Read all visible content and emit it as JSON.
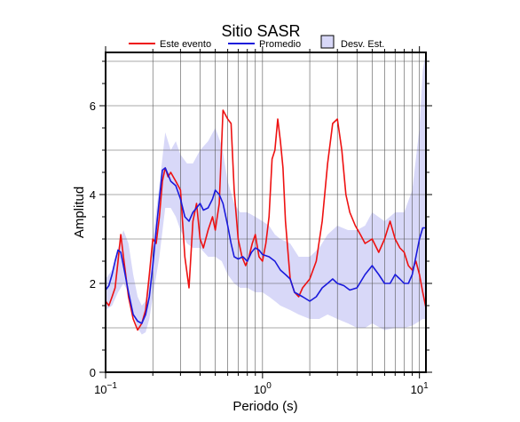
{
  "chart_data": {
    "type": "line",
    "title": "Sitio SASR",
    "xlabel": "Periodo (s)",
    "ylabel": "Amplitud",
    "x_scale": "log",
    "xlim": [
      0.1,
      11
    ],
    "ylim": [
      0,
      7.2
    ],
    "x_ticks": [
      {
        "value": 0.1,
        "base": "10",
        "exp": "−1"
      },
      {
        "value": 1,
        "base": "10",
        "exp": "0"
      },
      {
        "value": 10,
        "base": "10",
        "exp": "1"
      }
    ],
    "y_ticks": [
      0,
      2,
      4,
      6
    ],
    "grid": true,
    "legend": {
      "placement": "top",
      "entries": [
        {
          "label": "Este evento",
          "kind": "line",
          "color": "#ee1111"
        },
        {
          "label": "Promedio",
          "kind": "line",
          "color": "#1a1adc"
        },
        {
          "label": "Desv. Est.",
          "kind": "band",
          "color": "#d8d8f8"
        }
      ]
    },
    "series": [
      {
        "name": "Este evento",
        "color": "#ee1111",
        "x": [
          0.1,
          0.105,
          0.11,
          0.115,
          0.12,
          0.125,
          0.13,
          0.14,
          0.15,
          0.16,
          0.17,
          0.18,
          0.19,
          0.2,
          0.21,
          0.22,
          0.23,
          0.24,
          0.25,
          0.26,
          0.28,
          0.3,
          0.32,
          0.34,
          0.36,
          0.38,
          0.4,
          0.42,
          0.45,
          0.48,
          0.5,
          0.53,
          0.56,
          0.6,
          0.63,
          0.66,
          0.7,
          0.74,
          0.78,
          0.82,
          0.86,
          0.9,
          0.95,
          1.0,
          1.05,
          1.1,
          1.15,
          1.2,
          1.25,
          1.3,
          1.35,
          1.4,
          1.5,
          1.6,
          1.7,
          1.8,
          2.0,
          2.2,
          2.4,
          2.6,
          2.8,
          3.0,
          3.2,
          3.4,
          3.6,
          3.9,
          4.2,
          4.5,
          5.0,
          5.5,
          6.0,
          6.5,
          7.0,
          7.5,
          8.0,
          8.5,
          9.0,
          9.5,
          10.0,
          10.5,
          11.0
        ],
        "values": [
          1.6,
          1.5,
          1.7,
          1.9,
          2.5,
          3.1,
          2.6,
          1.7,
          1.2,
          0.95,
          1.1,
          1.4,
          2.2,
          3.0,
          2.9,
          3.5,
          4.3,
          4.6,
          4.4,
          4.5,
          4.3,
          4.1,
          2.6,
          1.9,
          3.4,
          3.8,
          3.0,
          2.8,
          3.2,
          3.5,
          3.2,
          3.8,
          5.9,
          5.7,
          5.6,
          4.1,
          3.0,
          2.6,
          2.4,
          2.6,
          2.9,
          3.1,
          2.6,
          2.5,
          2.9,
          3.5,
          4.8,
          5.0,
          5.7,
          5.2,
          4.6,
          3.4,
          2.1,
          1.8,
          1.7,
          1.9,
          2.1,
          2.5,
          3.4,
          4.7,
          5.6,
          5.7,
          5.0,
          4.0,
          3.6,
          3.3,
          3.1,
          2.9,
          3.0,
          2.7,
          3.0,
          3.4,
          3.0,
          2.8,
          2.7,
          2.4,
          2.3,
          2.5,
          2.2,
          1.8,
          1.45
        ]
      },
      {
        "name": "Promedio",
        "color": "#1a1adc",
        "x": [
          0.1,
          0.105,
          0.11,
          0.115,
          0.12,
          0.125,
          0.13,
          0.14,
          0.15,
          0.16,
          0.17,
          0.18,
          0.19,
          0.2,
          0.21,
          0.22,
          0.23,
          0.24,
          0.25,
          0.26,
          0.28,
          0.3,
          0.32,
          0.34,
          0.36,
          0.38,
          0.4,
          0.42,
          0.45,
          0.48,
          0.5,
          0.53,
          0.56,
          0.6,
          0.63,
          0.66,
          0.7,
          0.75,
          0.8,
          0.85,
          0.9,
          0.95,
          1.0,
          1.1,
          1.2,
          1.3,
          1.4,
          1.5,
          1.6,
          1.8,
          2.0,
          2.2,
          2.4,
          2.6,
          2.8,
          3.0,
          3.3,
          3.6,
          4.0,
          4.5,
          5.0,
          5.5,
          6.0,
          6.5,
          7.0,
          7.5,
          8.0,
          8.5,
          9.0,
          9.5,
          10.0,
          10.5,
          11.0
        ],
        "values": [
          1.85,
          1.95,
          2.2,
          2.5,
          2.75,
          2.7,
          2.4,
          1.8,
          1.3,
          1.15,
          1.1,
          1.3,
          1.7,
          2.4,
          3.2,
          3.9,
          4.55,
          4.6,
          4.45,
          4.3,
          4.2,
          3.9,
          3.5,
          3.4,
          3.6,
          3.7,
          3.8,
          3.65,
          3.7,
          3.9,
          4.1,
          4.0,
          3.8,
          3.3,
          2.9,
          2.6,
          2.55,
          2.6,
          2.5,
          2.7,
          2.8,
          2.75,
          2.65,
          2.6,
          2.5,
          2.3,
          2.2,
          2.1,
          1.8,
          1.7,
          1.6,
          1.7,
          1.9,
          2.0,
          2.1,
          2.0,
          1.95,
          1.85,
          1.9,
          2.2,
          2.4,
          2.2,
          2.0,
          2.0,
          2.2,
          2.1,
          2.0,
          2.0,
          2.2,
          2.6,
          3.0,
          3.25,
          3.25
        ]
      }
    ],
    "band": {
      "name": "Desv. Est.",
      "color": "#d8d8f8",
      "x": [
        0.1,
        0.11,
        0.12,
        0.13,
        0.14,
        0.15,
        0.16,
        0.17,
        0.18,
        0.19,
        0.2,
        0.22,
        0.24,
        0.26,
        0.28,
        0.3,
        0.33,
        0.36,
        0.4,
        0.45,
        0.5,
        0.55,
        0.6,
        0.66,
        0.72,
        0.8,
        0.9,
        1.0,
        1.1,
        1.2,
        1.3,
        1.5,
        1.7,
        2.0,
        2.3,
        2.6,
        3.0,
        3.5,
        4.0,
        4.5,
        5.0,
        6.0,
        7.0,
        8.0,
        9.0,
        10.0,
        10.5,
        11.0
      ],
      "upper": [
        2.1,
        2.3,
        2.8,
        3.2,
        2.9,
        2.2,
        1.7,
        1.5,
        1.6,
        2.2,
        3.0,
        4.2,
        5.4,
        5.0,
        5.2,
        4.9,
        4.7,
        4.7,
        5.0,
        5.2,
        5.5,
        5.1,
        4.3,
        3.8,
        3.6,
        3.6,
        3.5,
        3.4,
        3.3,
        3.1,
        3.0,
        2.9,
        2.6,
        2.6,
        2.8,
        3.1,
        3.3,
        3.2,
        3.2,
        3.3,
        3.6,
        3.4,
        3.6,
        3.6,
        4.1,
        5.5,
        6.8,
        7.2
      ],
      "lower": [
        1.4,
        1.5,
        1.8,
        2.0,
        1.8,
        1.3,
        1.0,
        0.85,
        0.9,
        1.2,
        1.7,
        2.6,
        3.7,
        3.7,
        3.5,
        3.2,
        2.9,
        2.8,
        2.8,
        2.6,
        2.6,
        2.5,
        2.2,
        2.0,
        1.9,
        1.9,
        1.8,
        1.8,
        1.7,
        1.6,
        1.5,
        1.4,
        1.3,
        1.2,
        1.2,
        1.3,
        1.2,
        1.1,
        1.0,
        1.0,
        1.1,
        0.95,
        1.0,
        1.0,
        1.05,
        1.15,
        1.2,
        1.2
      ]
    }
  }
}
